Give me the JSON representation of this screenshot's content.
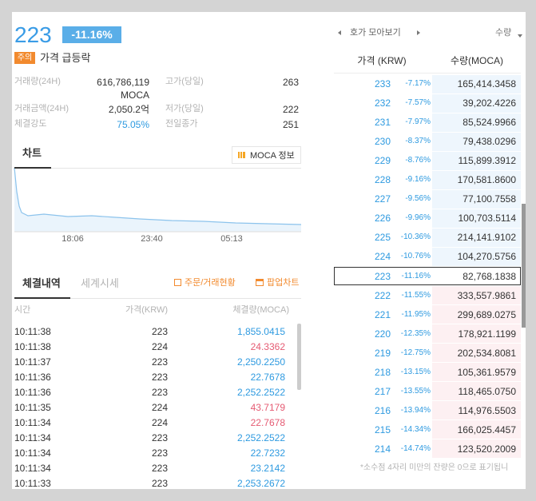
{
  "header": {
    "price": "223",
    "change": "-11.16%",
    "badge": "주의",
    "warning": "가격 급등락"
  },
  "stats": {
    "left": [
      {
        "label": "거래량(24H)",
        "value": "616,786,119",
        "unit": "MOCA"
      },
      {
        "label": "거래금액(24H)",
        "value": "2,050.2억"
      },
      {
        "label": "체결강도",
        "value": "75.05%"
      }
    ],
    "right": [
      {
        "label": "고가(당일)",
        "value": "263"
      },
      {
        "label": "저가(당일)",
        "value": "222"
      },
      {
        "label": "전일종가",
        "value": "251"
      }
    ]
  },
  "chart_tab": {
    "title": "차트",
    "info_button": "MOCA 정보",
    "times": [
      "18:06",
      "23:40",
      "05:13"
    ]
  },
  "trades": {
    "tabs": [
      "체결내역",
      "세계시세"
    ],
    "buttons": [
      "주문/거래현황",
      "팝업차트"
    ],
    "columns": [
      "시간",
      "가격(KRW)",
      "체결량(MOCA)"
    ],
    "rows": [
      [
        "10:11:38",
        "223",
        "1,855.0415"
      ],
      [
        "10:11:38",
        "224",
        "24.3362"
      ],
      [
        "10:11:37",
        "223",
        "2,250.2250"
      ],
      [
        "10:11:36",
        "223",
        "22.7678"
      ],
      [
        "10:11:36",
        "223",
        "2,252.2522"
      ],
      [
        "10:11:35",
        "224",
        "43.7179"
      ],
      [
        "10:11:34",
        "224",
        "22.7678"
      ],
      [
        "10:11:34",
        "223",
        "2,252.2522"
      ],
      [
        "10:11:34",
        "223",
        "22.7232"
      ],
      [
        "10:11:34",
        "223",
        "23.2142"
      ],
      [
        "10:11:33",
        "223",
        "2,253.2672"
      ]
    ]
  },
  "orderbook": {
    "title": "호가 모아보기",
    "mode": "수량",
    "columns": [
      "가격 (KRW)",
      "수량(MOCA)"
    ],
    "asks": [
      [
        "233",
        "-7.17%",
        "165,414.3458"
      ],
      [
        "232",
        "-7.57%",
        "39,202.4226"
      ],
      [
        "231",
        "-7.97%",
        "85,524.9966"
      ],
      [
        "230",
        "-8.37%",
        "79,438.0296"
      ],
      [
        "229",
        "-8.76%",
        "115,899.3912"
      ],
      [
        "228",
        "-9.16%",
        "170,581.8600"
      ],
      [
        "227",
        "-9.56%",
        "77,100.7558"
      ],
      [
        "226",
        "-9.96%",
        "100,703.5114"
      ],
      [
        "225",
        "-10.36%",
        "214,141.9102"
      ],
      [
        "224",
        "-10.76%",
        "104,270.5756"
      ]
    ],
    "current": [
      "223",
      "-11.16%",
      "82,768.1838"
    ],
    "bids": [
      [
        "222",
        "-11.55%",
        "333,557.9861"
      ],
      [
        "221",
        "-11.95%",
        "299,689.0275"
      ],
      [
        "220",
        "-12.35%",
        "178,921.1199"
      ],
      [
        "219",
        "-12.75%",
        "202,534.8081"
      ],
      [
        "218",
        "-13.15%",
        "105,361.9579"
      ],
      [
        "217",
        "-13.55%",
        "118,465.0750"
      ],
      [
        "216",
        "-13.94%",
        "114,976.5503"
      ],
      [
        "215",
        "-14.34%",
        "166,025.4457"
      ],
      [
        "214",
        "-14.74%",
        "123,520.2009"
      ]
    ],
    "note": "*소수점 4자리 미만의 잔량은 0으로 표기됩니"
  }
}
